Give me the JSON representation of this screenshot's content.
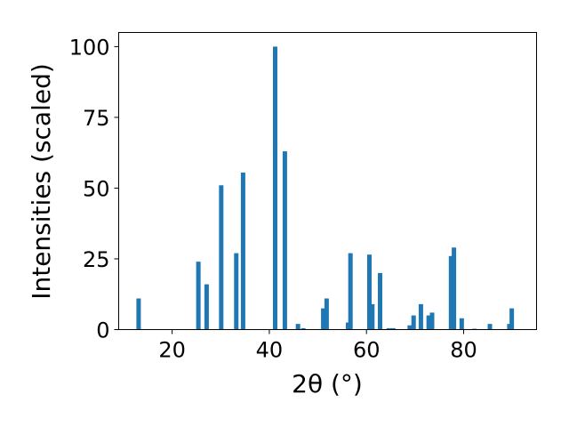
{
  "chart_data": {
    "type": "bar",
    "title": "",
    "xlabel": "2θ (°)",
    "ylabel": "Intensities (scaled)",
    "xlim": [
      9,
      95
    ],
    "ylim": [
      0,
      105
    ],
    "xticks": [
      20,
      40,
      60,
      80
    ],
    "yticks": [
      0,
      25,
      50,
      75,
      100
    ],
    "grid": false,
    "bar_color": "#1f77b4",
    "x": [
      13.1,
      25.4,
      27.1,
      30.1,
      33.2,
      34.6,
      41.2,
      43.2,
      45.9,
      47.0,
      51.1,
      51.8,
      56.2,
      56.7,
      60.6,
      61.2,
      62.8,
      64.6,
      65.5,
      68.9,
      69.7,
      71.2,
      72.8,
      73.5,
      77.4,
      78.0,
      79.6,
      82.2,
      85.4,
      89.4,
      89.9
    ],
    "values": [
      11,
      24,
      16,
      51,
      27,
      55.5,
      100,
      63,
      2,
      0.5,
      7.5,
      11,
      2.5,
      27,
      26.5,
      9,
      20,
      0.5,
      0.5,
      1.5,
      5,
      9,
      5,
      6,
      26,
      29,
      4,
      0.3,
      2,
      2,
      7.5
    ]
  }
}
